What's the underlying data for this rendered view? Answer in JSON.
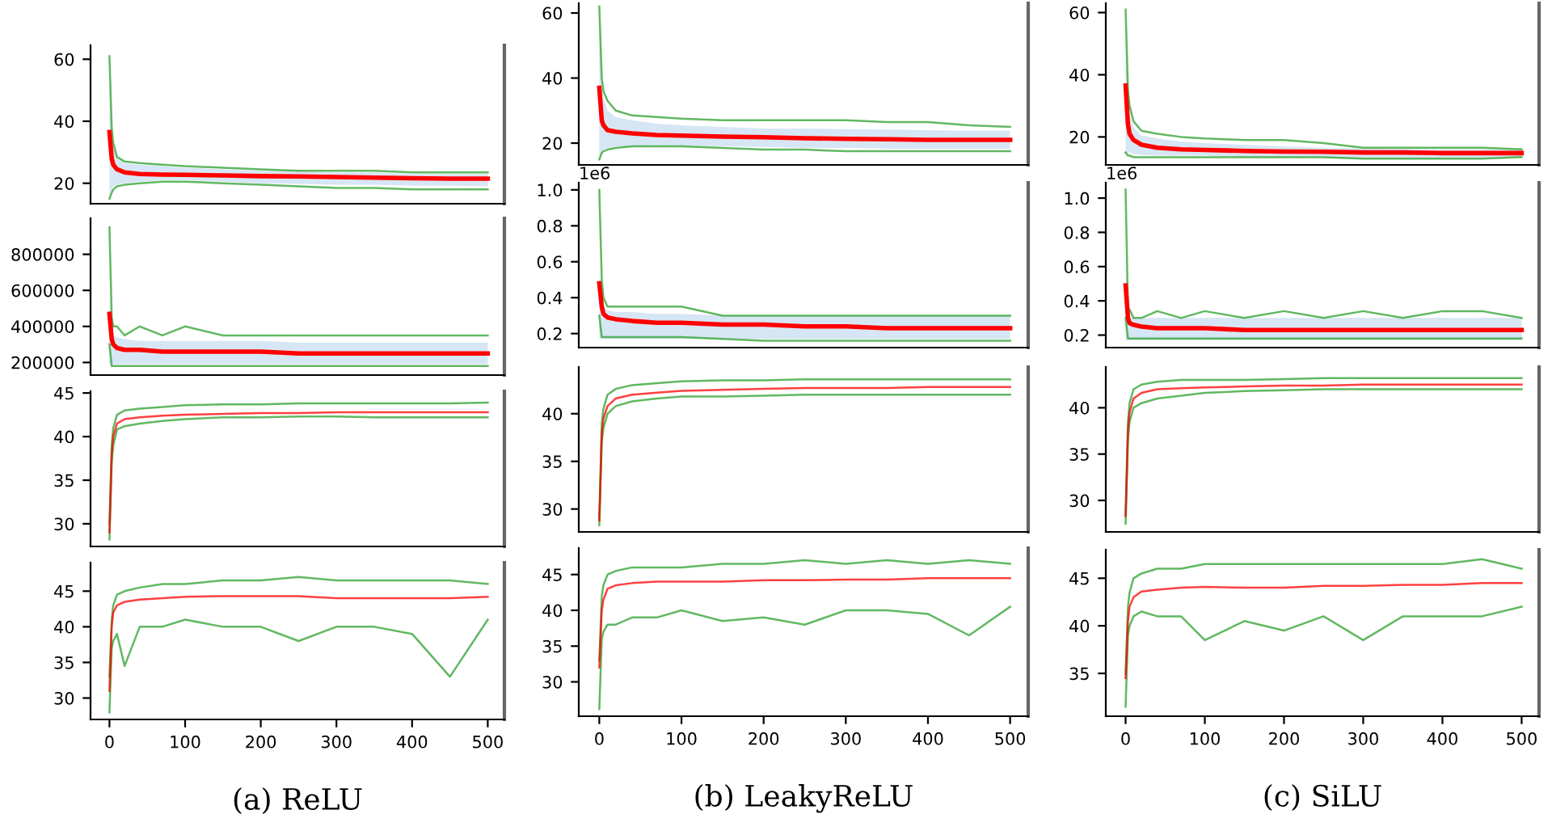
{
  "chart_data": [
    {
      "type": "line",
      "x": [
        0,
        3,
        5,
        10,
        20,
        40,
        70,
        100,
        150,
        200,
        250,
        300,
        350,
        400,
        450,
        500
      ],
      "xlim": [
        -25,
        522
      ],
      "ylim": [
        13.4,
        64.5
      ],
      "yticks": [
        20,
        40,
        60
      ],
      "tick_labels": "y",
      "series": [
        {
          "color": "#2ca02c",
          "values": [
            61,
            38,
            33,
            28.5,
            27,
            26.5,
            26,
            25.5,
            25,
            24.5,
            24,
            24,
            24,
            23.5,
            23.5,
            23.5
          ]
        },
        {
          "color": "#2ca02c",
          "values": [
            15,
            17,
            18,
            19,
            19.5,
            20,
            20.5,
            20.5,
            20,
            19.5,
            19,
            18.5,
            18.5,
            18,
            18,
            18
          ]
        },
        {
          "color": "#ff0000",
          "values": [
            36.5,
            28,
            26,
            24.5,
            23.5,
            23,
            22.8,
            22.7,
            22.5,
            22.3,
            22.2,
            22,
            21.8,
            21.6,
            21.5,
            21.5
          ],
          "lower": [
            16,
            18,
            19,
            19.5,
            20,
            20.5,
            21,
            21,
            20.5,
            20,
            19.8,
            19.5,
            19.5,
            19.2,
            19.2,
            19
          ],
          "upper": [
            55,
            36,
            32,
            28,
            26.5,
            26,
            25.5,
            25,
            24.5,
            24,
            24,
            23.5,
            23.5,
            23,
            23,
            23
          ]
        }
      ]
    },
    {
      "type": "line",
      "x": [
        0,
        3,
        5,
        10,
        20,
        40,
        70,
        100,
        150,
        200,
        250,
        300,
        350,
        400,
        450,
        500
      ],
      "xlim": [
        -25,
        522
      ],
      "ylim": [
        130000,
        1000000
      ],
      "yticks": [
        200000,
        400000,
        600000,
        800000
      ],
      "tick_labels": "y",
      "series": [
        {
          "color": "#2ca02c",
          "values": [
            950000,
            450000,
            400000,
            400000,
            350000,
            400000,
            350000,
            400000,
            350000,
            350000,
            350000,
            350000,
            350000,
            350000,
            350000,
            350000
          ]
        },
        {
          "color": "#2ca02c",
          "values": [
            300000,
            180000,
            180000,
            180000,
            180000,
            180000,
            180000,
            180000,
            180000,
            180000,
            180000,
            180000,
            180000,
            180000,
            180000,
            180000
          ]
        },
        {
          "color": "#ff0000",
          "values": [
            470000,
            330000,
            300000,
            280000,
            270000,
            270000,
            260000,
            260000,
            260000,
            260000,
            250000,
            250000,
            250000,
            250000,
            250000,
            250000
          ],
          "lower": [
            180000,
            190000,
            190000,
            190000,
            190000,
            190000,
            190000,
            190000,
            190000,
            190000,
            190000,
            190000,
            190000,
            190000,
            190000,
            190000
          ],
          "upper": [
            560000,
            380000,
            350000,
            340000,
            330000,
            320000,
            320000,
            320000,
            320000,
            320000,
            310000,
            310000,
            310000,
            310000,
            310000,
            310000
          ]
        }
      ]
    },
    {
      "type": "line",
      "x": [
        0,
        3,
        5,
        10,
        20,
        40,
        70,
        100,
        150,
        200,
        250,
        300,
        350,
        400,
        450,
        500
      ],
      "xlim": [
        -25,
        522
      ],
      "ylim": [
        27.4,
        45.2
      ],
      "yticks": [
        30,
        35,
        40,
        45
      ],
      "tick_labels": "y",
      "series": [
        {
          "color": "#2ca02c",
          "values": [
            30,
            39,
            41,
            42.5,
            43,
            43.2,
            43.4,
            43.6,
            43.7,
            43.7,
            43.8,
            43.8,
            43.8,
            43.8,
            43.8,
            43.9
          ]
        },
        {
          "color": "#2ca02c",
          "values": [
            28.2,
            37,
            39,
            40.8,
            41.2,
            41.5,
            41.8,
            42,
            42.2,
            42.2,
            42.3,
            42.3,
            42.2,
            42.2,
            42.2,
            42.2
          ]
        },
        {
          "color": "#ff0000",
          "values": [
            29,
            38,
            40,
            41.5,
            42,
            42.2,
            42.4,
            42.5,
            42.6,
            42.7,
            42.7,
            42.8,
            42.8,
            42.8,
            42.8,
            42.8
          ]
        }
      ]
    },
    {
      "type": "line",
      "x": [
        0,
        3,
        5,
        10,
        20,
        40,
        70,
        100,
        150,
        200,
        250,
        300,
        350,
        400,
        450,
        500
      ],
      "xlim": [
        -25,
        522
      ],
      "xticks": [
        0,
        100,
        200,
        300,
        400,
        500
      ],
      "ylim": [
        27,
        49
      ],
      "yticks": [
        30,
        35,
        40,
        45
      ],
      "xlabel": "(a) ReLU",
      "series": [
        {
          "color": "#2ca02c",
          "values": [
            33,
            41,
            43,
            44.5,
            45,
            45.5,
            46,
            46,
            46.5,
            46.5,
            47,
            46.5,
            46.5,
            46.5,
            46.5,
            46
          ]
        },
        {
          "color": "#2ca02c",
          "values": [
            28,
            37,
            38,
            39,
            34.5,
            40,
            40,
            41,
            40,
            40,
            38,
            40,
            40,
            39,
            33,
            41
          ]
        },
        {
          "color": "#ff0000",
          "values": [
            31,
            40,
            42,
            43,
            43.5,
            43.8,
            44,
            44.2,
            44.3,
            44.3,
            44.3,
            44,
            44,
            44,
            44,
            44.2
          ]
        }
      ]
    },
    {
      "type": "line",
      "x": [
        0,
        3,
        5,
        10,
        20,
        40,
        70,
        100,
        150,
        200,
        250,
        300,
        350,
        400,
        450,
        500
      ],
      "xlim": [
        -25,
        522
      ],
      "ylim": [
        13.3,
        63
      ],
      "yticks": [
        20,
        40,
        60
      ],
      "tick_labels": "y",
      "series": [
        {
          "color": "#2ca02c",
          "values": [
            62,
            40,
            36,
            33,
            30,
            28.5,
            28,
            27.5,
            27,
            27,
            27,
            27,
            26.5,
            26.5,
            25.5,
            25
          ]
        },
        {
          "color": "#2ca02c",
          "values": [
            15,
            17,
            17.5,
            18,
            18.5,
            19,
            19,
            19,
            18.5,
            18,
            18,
            17.5,
            17.5,
            17.5,
            17.5,
            17.5
          ]
        },
        {
          "color": "#ff0000",
          "values": [
            37,
            27,
            25.5,
            24,
            23.5,
            23,
            22.5,
            22.3,
            22,
            21.8,
            21.5,
            21.3,
            21.2,
            21,
            21,
            21
          ],
          "lower": [
            15,
            17,
            18,
            18.5,
            19,
            19,
            19.2,
            19.2,
            19,
            18.8,
            18.5,
            18.5,
            18.3,
            18.3,
            18.3,
            18.3
          ],
          "upper": [
            58,
            38,
            34,
            30,
            28,
            27,
            26,
            25.5,
            25,
            24.5,
            24.5,
            24.3,
            24.2,
            24,
            23.8,
            23.8
          ]
        }
      ]
    },
    {
      "type": "line",
      "x": [
        0,
        3,
        5,
        10,
        20,
        40,
        70,
        100,
        150,
        200,
        250,
        300,
        350,
        400,
        450,
        500
      ],
      "xlim": [
        -25,
        522
      ],
      "ylim": [
        0.122,
        1.04
      ],
      "yticks": [
        0.2,
        0.4,
        0.6,
        0.8,
        {
          "value": 1,
          "label": "1.0"
        }
      ],
      "tick_labels": "y",
      "annotations": [
        "1e6"
      ],
      "series": [
        {
          "color": "#2ca02c",
          "values": [
            1.0,
            0.5,
            0.4,
            0.35,
            0.35,
            0.35,
            0.35,
            0.35,
            0.3,
            0.3,
            0.3,
            0.3,
            0.3,
            0.3,
            0.3,
            0.3
          ]
        },
        {
          "color": "#2ca02c",
          "values": [
            0.3,
            0.18,
            0.18,
            0.18,
            0.18,
            0.18,
            0.18,
            0.18,
            0.17,
            0.16,
            0.16,
            0.16,
            0.16,
            0.16,
            0.16,
            0.16
          ]
        },
        {
          "color": "#ff0000",
          "values": [
            0.48,
            0.35,
            0.31,
            0.29,
            0.28,
            0.27,
            0.26,
            0.26,
            0.25,
            0.25,
            0.24,
            0.24,
            0.23,
            0.23,
            0.23,
            0.23
          ],
          "lower": [
            0.17,
            0.17,
            0.17,
            0.17,
            0.17,
            0.17,
            0.17,
            0.17,
            0.17,
            0.17,
            0.17,
            0.17,
            0.17,
            0.17,
            0.17,
            0.17
          ],
          "upper": [
            0.56,
            0.38,
            0.35,
            0.33,
            0.32,
            0.32,
            0.31,
            0.31,
            0.3,
            0.3,
            0.3,
            0.3,
            0.3,
            0.3,
            0.3,
            0.3
          ]
        }
      ]
    },
    {
      "type": "line",
      "x": [
        0,
        3,
        5,
        10,
        20,
        40,
        70,
        100,
        150,
        200,
        250,
        300,
        350,
        400,
        450,
        500
      ],
      "xlim": [
        -25,
        522
      ],
      "ylim": [
        27.6,
        44.9
      ],
      "yticks": [
        30,
        35,
        40
      ],
      "tick_labels": "y",
      "series": [
        {
          "color": "#2ca02c",
          "values": [
            29,
            39,
            40.5,
            42,
            42.6,
            43,
            43.2,
            43.4,
            43.5,
            43.5,
            43.6,
            43.6,
            43.6,
            43.6,
            43.6,
            43.6
          ]
        },
        {
          "color": "#2ca02c",
          "values": [
            28.3,
            37,
            38.5,
            40,
            40.8,
            41.3,
            41.6,
            41.8,
            41.8,
            41.9,
            42,
            42,
            42,
            42,
            42,
            42
          ]
        },
        {
          "color": "#ff0000",
          "values": [
            28.8,
            38,
            39.5,
            40.8,
            41.6,
            42,
            42.2,
            42.4,
            42.5,
            42.6,
            42.7,
            42.7,
            42.7,
            42.8,
            42.8,
            42.8
          ]
        }
      ]
    },
    {
      "type": "line",
      "x": [
        0,
        3,
        5,
        10,
        20,
        40,
        70,
        100,
        150,
        200,
        250,
        300,
        350,
        400,
        450,
        500
      ],
      "xlim": [
        -25,
        522
      ],
      "xticks": [
        0,
        100,
        200,
        300,
        400,
        500
      ],
      "ylim": [
        25.2,
        48.7
      ],
      "yticks": [
        30,
        35,
        40,
        45
      ],
      "xlabel": "(b) LeakyReLU",
      "series": [
        {
          "color": "#2ca02c",
          "values": [
            33,
            42,
            43.5,
            45,
            45.5,
            46,
            46,
            46,
            46.5,
            46.5,
            47,
            46.5,
            47,
            46.5,
            47,
            46.5
          ]
        },
        {
          "color": "#2ca02c",
          "values": [
            26.2,
            36,
            37,
            38,
            38,
            39,
            39,
            40,
            38.5,
            39,
            38,
            40,
            40,
            39.5,
            36.5,
            40.5
          ]
        },
        {
          "color": "#ff0000",
          "values": [
            32,
            40,
            41.5,
            43,
            43.5,
            43.8,
            44,
            44,
            44,
            44.2,
            44.2,
            44.3,
            44.3,
            44.5,
            44.5,
            44.5
          ]
        }
      ]
    },
    {
      "type": "line",
      "x": [
        0,
        3,
        5,
        10,
        20,
        40,
        70,
        100,
        150,
        200,
        250,
        300,
        350,
        400,
        450,
        500
      ],
      "xlim": [
        -25,
        522
      ],
      "ylim": [
        11,
        63
      ],
      "yticks": [
        20,
        40,
        60
      ],
      "tick_labels": "y",
      "series": [
        {
          "color": "#2ca02c",
          "values": [
            61,
            35,
            30,
            25,
            22,
            21,
            20,
            19.5,
            19,
            19,
            18,
            16.5,
            16.5,
            16.5,
            16.5,
            16
          ]
        },
        {
          "color": "#2ca02c",
          "values": [
            15,
            14,
            14,
            13.5,
            13.5,
            13.5,
            13.5,
            13.5,
            13.5,
            13.5,
            13.5,
            13,
            13,
            13,
            13,
            13.5
          ]
        },
        {
          "color": "#ff0000",
          "values": [
            36.5,
            24,
            21,
            19,
            17.5,
            16.5,
            16,
            15.8,
            15.5,
            15.3,
            15.2,
            15,
            15,
            14.8,
            14.8,
            14.8
          ],
          "lower": [
            14,
            15,
            15,
            14.5,
            14.2,
            14,
            14,
            14,
            13.5,
            13.5,
            13.5,
            13,
            13,
            13,
            13,
            13.5
          ],
          "upper": [
            55,
            32,
            27,
            23,
            20.5,
            19.5,
            18.5,
            18,
            17.5,
            17,
            16.5,
            16.3,
            16.2,
            16,
            16,
            16
          ]
        }
      ]
    },
    {
      "type": "line",
      "x": [
        0,
        3,
        5,
        10,
        20,
        40,
        70,
        100,
        150,
        200,
        250,
        300,
        350,
        400,
        450,
        500
      ],
      "xlim": [
        -25,
        522
      ],
      "ylim": [
        0.127,
        1.09
      ],
      "yticks": [
        0.2,
        0.4,
        0.6,
        0.8,
        {
          "value": 1,
          "label": "1.0"
        }
      ],
      "tick_labels": "y",
      "annotations": [
        "1e6"
      ],
      "series": [
        {
          "color": "#2ca02c",
          "values": [
            1.05,
            0.35,
            0.35,
            0.3,
            0.3,
            0.34,
            0.3,
            0.34,
            0.3,
            0.34,
            0.3,
            0.34,
            0.3,
            0.34,
            0.34,
            0.3
          ]
        },
        {
          "color": "#2ca02c",
          "values": [
            0.3,
            0.18,
            0.18,
            0.18,
            0.18,
            0.18,
            0.18,
            0.18,
            0.18,
            0.18,
            0.18,
            0.18,
            0.18,
            0.18,
            0.18,
            0.18
          ]
        },
        {
          "color": "#ff0000",
          "values": [
            0.49,
            0.3,
            0.27,
            0.26,
            0.25,
            0.24,
            0.24,
            0.24,
            0.23,
            0.23,
            0.23,
            0.23,
            0.23,
            0.23,
            0.23,
            0.23
          ],
          "lower": [
            0.17,
            0.17,
            0.17,
            0.17,
            0.17,
            0.17,
            0.17,
            0.17,
            0.17,
            0.17,
            0.17,
            0.17,
            0.17,
            0.17,
            0.17,
            0.17
          ],
          "upper": [
            0.55,
            0.32,
            0.3,
            0.3,
            0.3,
            0.3,
            0.3,
            0.3,
            0.3,
            0.3,
            0.3,
            0.3,
            0.3,
            0.3,
            0.3,
            0.3
          ]
        }
      ]
    },
    {
      "type": "line",
      "x": [
        0,
        3,
        5,
        10,
        20,
        40,
        70,
        100,
        150,
        200,
        250,
        300,
        350,
        400,
        450,
        500
      ],
      "xlim": [
        -25,
        522
      ],
      "ylim": [
        26.6,
        44.4
      ],
      "yticks": [
        30,
        35,
        40
      ],
      "tick_labels": "y",
      "series": [
        {
          "color": "#2ca02c",
          "values": [
            28.5,
            38.5,
            40.5,
            42,
            42.5,
            42.8,
            43,
            43,
            43,
            43.1,
            43.2,
            43.2,
            43.2,
            43.2,
            43.2,
            43.2
          ]
        },
        {
          "color": "#2ca02c",
          "values": [
            27.5,
            36.5,
            38.5,
            40,
            40.5,
            41,
            41.3,
            41.6,
            41.8,
            41.9,
            42,
            42,
            42,
            42,
            42,
            42
          ]
        },
        {
          "color": "#ff0000",
          "values": [
            28.3,
            37.5,
            39.5,
            41,
            41.6,
            42,
            42.1,
            42.2,
            42.3,
            42.4,
            42.4,
            42.5,
            42.5,
            42.5,
            42.5,
            42.5
          ]
        }
      ]
    },
    {
      "type": "line",
      "x": [
        0,
        3,
        5,
        10,
        20,
        40,
        70,
        100,
        150,
        200,
        250,
        300,
        350,
        400,
        450,
        500
      ],
      "xlim": [
        -25,
        522
      ],
      "xticks": [
        0,
        100,
        200,
        300,
        400,
        500
      ],
      "ylim": [
        30.5,
        48
      ],
      "yticks": [
        35,
        40,
        45
      ],
      "xlabel": "(c) SiLU",
      "series": [
        {
          "color": "#2ca02c",
          "values": [
            35,
            42,
            43.5,
            45,
            45.5,
            46,
            46,
            46.5,
            46.5,
            46.5,
            46.5,
            46.5,
            46.5,
            46.5,
            47,
            46
          ]
        },
        {
          "color": "#2ca02c",
          "values": [
            31.5,
            39,
            40,
            41,
            41.5,
            41,
            41,
            38.5,
            40.5,
            39.5,
            41,
            38.5,
            41,
            41,
            41,
            42
          ]
        },
        {
          "color": "#ff0000",
          "values": [
            34.5,
            40.5,
            42,
            43,
            43.6,
            43.8,
            44,
            44.1,
            44,
            44,
            44.2,
            44.2,
            44.3,
            44.3,
            44.5,
            44.5
          ]
        }
      ]
    }
  ]
}
